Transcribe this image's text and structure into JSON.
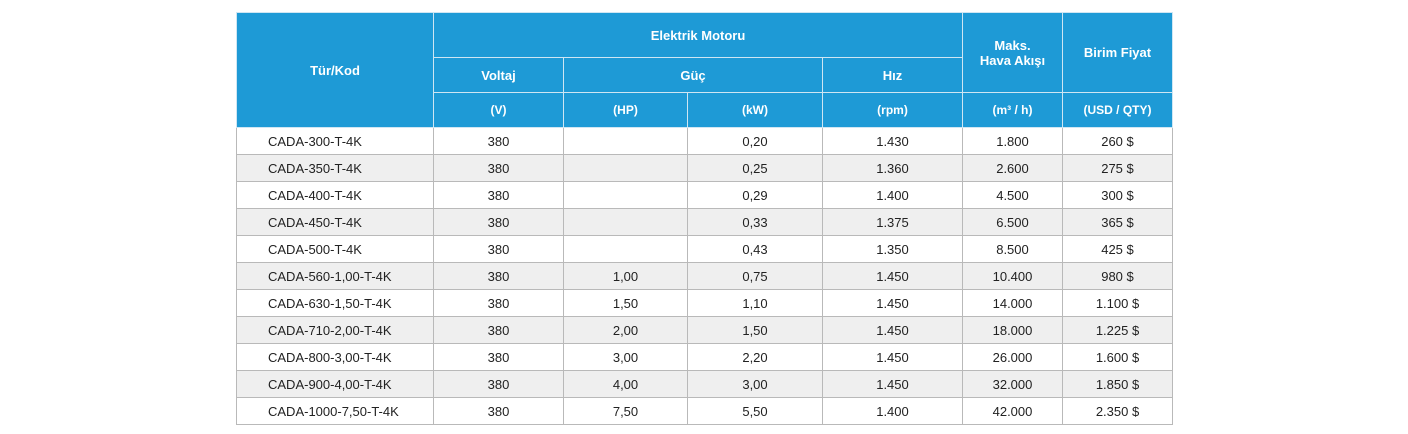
{
  "header": {
    "type_code": "Tür/Kod",
    "electric_motor": "Elektrik Motoru",
    "max_airflow_line1": "Maks.",
    "max_airflow_line2": "Hava Akışı",
    "unit_price": "Birim Fiyat",
    "voltage": "Voltaj",
    "power": "Güç",
    "speed": "Hız",
    "unit_voltage": "(V)",
    "unit_hp": "(HP)",
    "unit_kw": "(kW)",
    "unit_rpm": "(rpm)",
    "unit_airflow": "(m³ / h)",
    "unit_price_unit": "(USD / QTY)"
  },
  "rows": [
    {
      "code": "CADA-300-T-4K",
      "voltage": "380",
      "hp": "",
      "kw": "0,20",
      "rpm": "1.430",
      "airflow": "1.800",
      "price": "260 $"
    },
    {
      "code": "CADA-350-T-4K",
      "voltage": "380",
      "hp": "",
      "kw": "0,25",
      "rpm": "1.360",
      "airflow": "2.600",
      "price": "275 $"
    },
    {
      "code": "CADA-400-T-4K",
      "voltage": "380",
      "hp": "",
      "kw": "0,29",
      "rpm": "1.400",
      "airflow": "4.500",
      "price": "300 $"
    },
    {
      "code": "CADA-450-T-4K",
      "voltage": "380",
      "hp": "",
      "kw": "0,33",
      "rpm": "1.375",
      "airflow": "6.500",
      "price": "365 $"
    },
    {
      "code": "CADA-500-T-4K",
      "voltage": "380",
      "hp": "",
      "kw": "0,43",
      "rpm": "1.350",
      "airflow": "8.500",
      "price": "425 $"
    },
    {
      "code": "CADA-560-1,00-T-4K",
      "voltage": "380",
      "hp": "1,00",
      "kw": "0,75",
      "rpm": "1.450",
      "airflow": "10.400",
      "price": "980 $"
    },
    {
      "code": "CADA-630-1,50-T-4K",
      "voltage": "380",
      "hp": "1,50",
      "kw": "1,10",
      "rpm": "1.450",
      "airflow": "14.000",
      "price": "1.100 $"
    },
    {
      "code": "CADA-710-2,00-T-4K",
      "voltage": "380",
      "hp": "2,00",
      "kw": "1,50",
      "rpm": "1.450",
      "airflow": "18.000",
      "price": "1.225 $"
    },
    {
      "code": "CADA-800-3,00-T-4K",
      "voltage": "380",
      "hp": "3,00",
      "kw": "2,20",
      "rpm": "1.450",
      "airflow": "26.000",
      "price": "1.600 $"
    },
    {
      "code": "CADA-900-4,00-T-4K",
      "voltage": "380",
      "hp": "4,00",
      "kw": "3,00",
      "rpm": "1.450",
      "airflow": "32.000",
      "price": "1.850 $"
    },
    {
      "code": "CADA-1000-7,50-T-4K",
      "voltage": "380",
      "hp": "7,50",
      "kw": "5,50",
      "rpm": "1.400",
      "airflow": "42.000",
      "price": "2.350 $"
    }
  ]
}
